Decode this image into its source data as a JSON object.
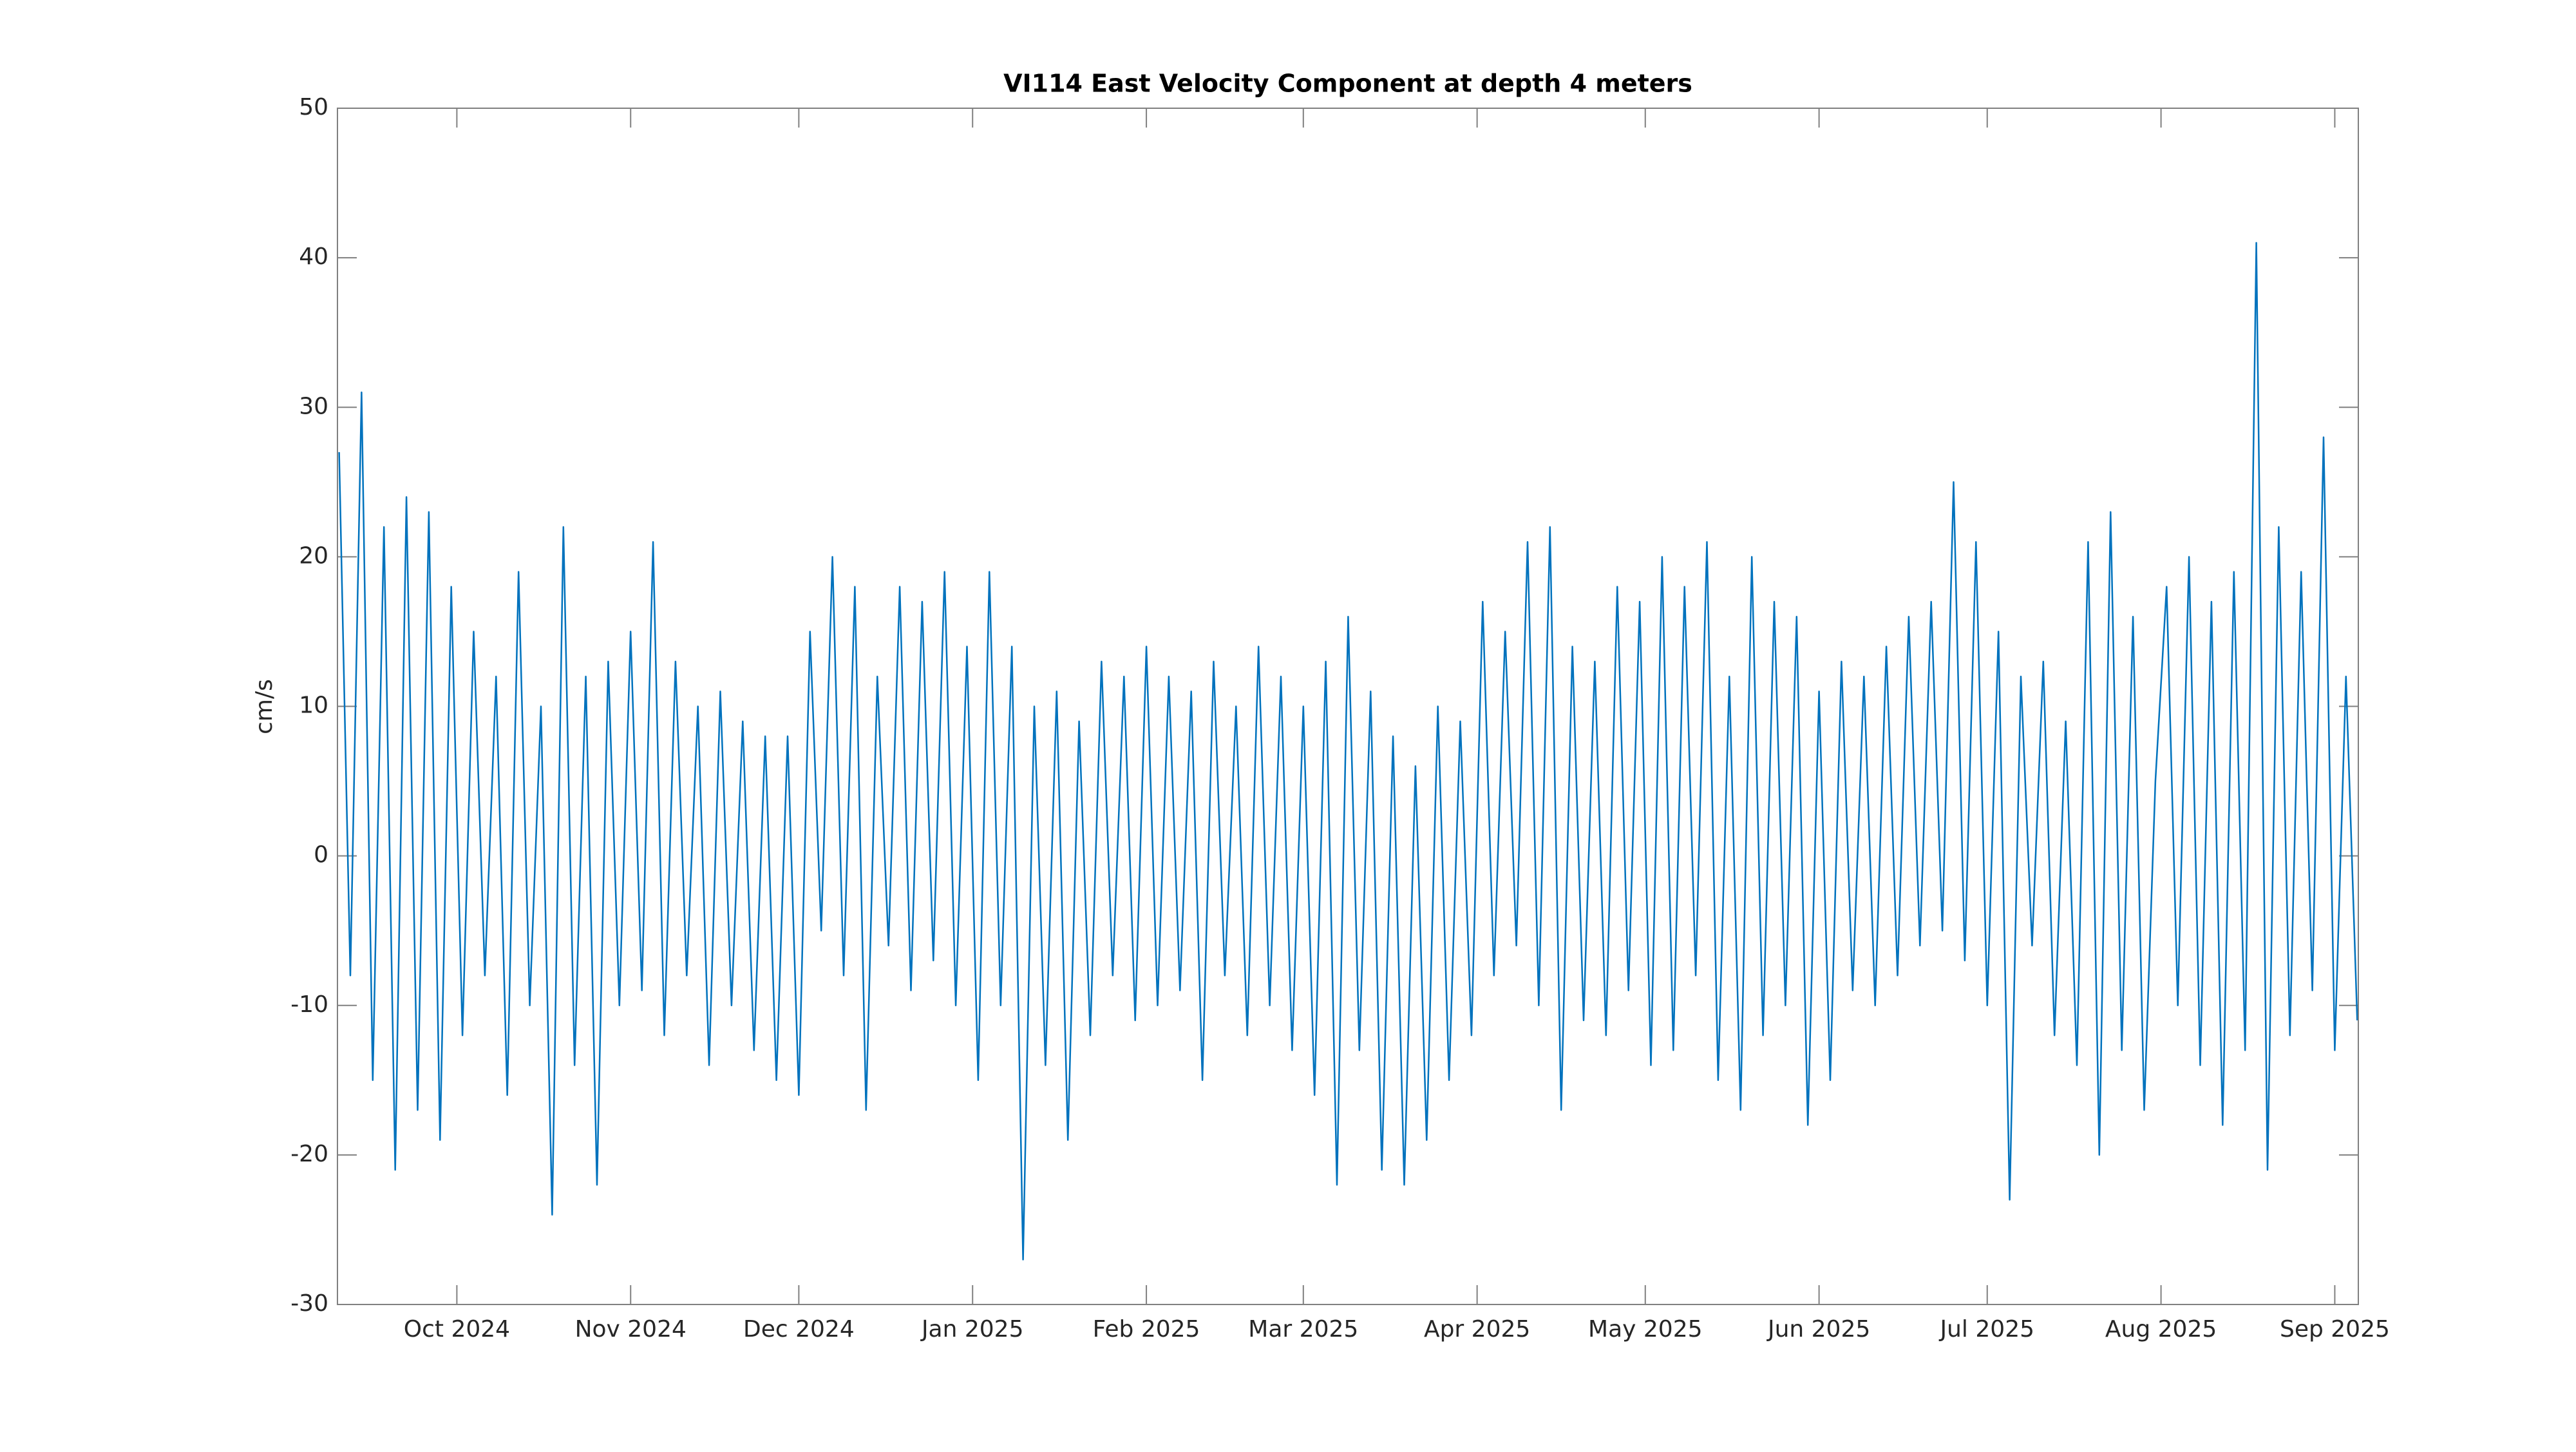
{
  "chart_data": {
    "type": "line",
    "title": "VI114 East Velocity Component at depth 4 meters",
    "y_label": "cm/s",
    "xlim": [
      8.7,
      369.2
    ],
    "xticks": [
      {
        "value": 30,
        "label": "Oct 2024"
      },
      {
        "value": 61,
        "label": "Nov 2024"
      },
      {
        "value": 91,
        "label": "Dec 2024"
      },
      {
        "value": 122,
        "label": "Jan 2025"
      },
      {
        "value": 153,
        "label": "Feb 2025"
      },
      {
        "value": 181,
        "label": "Mar 2025"
      },
      {
        "value": 212,
        "label": "Apr 2025"
      },
      {
        "value": 242,
        "label": "May 2025"
      },
      {
        "value": 273,
        "label": "Jun 2025"
      },
      {
        "value": 303,
        "label": "Jul 2025"
      },
      {
        "value": 334,
        "label": "Aug 2025"
      },
      {
        "value": 365,
        "label": "Sep 2025"
      }
    ],
    "ylim": [
      -30,
      50
    ],
    "yticks": [
      -30,
      -20,
      -10,
      0,
      10,
      20,
      30,
      40,
      50
    ],
    "grid": false,
    "x": [
      9,
      11,
      13,
      15,
      17,
      19,
      21,
      23,
      25,
      27,
      29,
      31,
      33,
      35,
      37,
      39,
      41,
      43,
      45,
      47,
      49,
      51,
      53,
      55,
      57,
      59,
      61,
      63,
      65,
      67,
      69,
      71,
      73,
      75,
      77,
      79,
      81,
      83,
      85,
      87,
      89,
      91,
      93,
      95,
      97,
      99,
      101,
      103,
      105,
      107,
      109,
      111,
      113,
      115,
      117,
      119,
      121,
      123,
      125,
      127,
      129,
      131,
      133,
      135,
      137,
      139,
      141,
      143,
      145,
      147,
      149,
      151,
      153,
      155,
      157,
      159,
      161,
      163,
      165,
      167,
      169,
      171,
      173,
      175,
      177,
      179,
      181,
      183,
      185,
      187,
      189,
      191,
      193,
      195,
      197,
      199,
      201,
      203,
      205,
      207,
      209,
      211,
      213,
      215,
      217,
      219,
      221,
      223,
      225,
      227,
      229,
      231,
      233,
      235,
      237,
      239,
      241,
      243,
      245,
      247,
      249,
      251,
      253,
      255,
      257,
      259,
      261,
      263,
      265,
      267,
      269,
      271,
      273,
      275,
      277,
      279,
      281,
      283,
      285,
      287,
      289,
      291,
      293,
      295,
      297,
      299,
      301,
      303,
      305,
      307,
      309,
      311,
      313,
      315,
      317,
      319,
      321,
      323,
      325,
      327,
      329,
      331,
      333,
      335,
      337,
      339,
      341,
      343,
      345,
      347,
      349,
      351,
      353,
      355,
      357,
      359,
      361,
      363,
      365,
      367,
      369
    ],
    "series": [
      {
        "color": "#0072bd",
        "values": [
          27,
          -8,
          31,
          -15,
          22,
          -21,
          24,
          -17,
          23,
          -19,
          18,
          -12,
          15,
          -8,
          12,
          -16,
          19,
          -10,
          10,
          -24,
          22,
          -14,
          12,
          -22,
          13,
          -10,
          15,
          -9,
          21,
          -12,
          13,
          -8,
          10,
          -14,
          11,
          -10,
          9,
          -13,
          8,
          -15,
          8,
          -16,
          15,
          -5,
          20,
          -8,
          18,
          -17,
          12,
          -6,
          18,
          -9,
          17,
          -7,
          19,
          -10,
          14,
          -15,
          19,
          -10,
          14,
          -27,
          10,
          -14,
          11,
          -19,
          9,
          -12,
          13,
          -8,
          12,
          -11,
          14,
          -10,
          12,
          -9,
          11,
          -15,
          13,
          -8,
          10,
          -12,
          14,
          -10,
          12,
          -13,
          10,
          -16,
          13,
          -22,
          16,
          -13,
          11,
          -21,
          8,
          -22,
          6,
          -19,
          10,
          -15,
          9,
          -12,
          17,
          -8,
          15,
          -6,
          21,
          -10,
          22,
          -17,
          14,
          -11,
          13,
          -12,
          18,
          -9,
          17,
          -14,
          20,
          -13,
          18,
          -8,
          21,
          -15,
          12,
          -17,
          20,
          -12,
          17,
          -10,
          16,
          -18,
          11,
          -15,
          13,
          -9,
          12,
          -10,
          14,
          -8,
          16,
          -6,
          17,
          -5,
          25,
          -7,
          21,
          -10,
          15,
          -23,
          12,
          -6,
          13,
          -12,
          9,
          -14,
          21,
          -20,
          23,
          -13,
          16,
          -17,
          5,
          18,
          -10,
          20,
          -14,
          17,
          -18,
          19,
          -13,
          41,
          -21,
          22,
          -12,
          19,
          -9,
          28,
          -13,
          12,
          -11
        ]
      }
    ]
  }
}
